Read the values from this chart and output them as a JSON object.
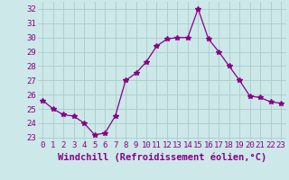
{
  "x": [
    0,
    1,
    2,
    3,
    4,
    5,
    6,
    7,
    8,
    9,
    10,
    11,
    12,
    13,
    14,
    15,
    16,
    17,
    18,
    19,
    20,
    21,
    22,
    23
  ],
  "y": [
    25.6,
    25.0,
    24.6,
    24.5,
    24.0,
    23.2,
    23.3,
    24.5,
    27.0,
    27.5,
    28.3,
    29.4,
    29.9,
    30.0,
    30.0,
    32.0,
    29.9,
    29.0,
    28.0,
    27.0,
    25.9,
    25.8,
    25.5,
    25.4
  ],
  "line_color": "#880088",
  "marker": "*",
  "marker_size": 4,
  "bg_color": "#cce8e8",
  "grid_color": "#aacccc",
  "xlabel": "Windchill (Refroidissement éolien,°C)",
  "xlabel_color": "#880088",
  "xlabel_fontsize": 7.5,
  "tick_color": "#880088",
  "tick_fontsize": 6.5,
  "ylim": [
    22.8,
    32.5
  ],
  "yticks": [
    23,
    24,
    25,
    26,
    27,
    28,
    29,
    30,
    31,
    32
  ],
  "xticks": [
    0,
    1,
    2,
    3,
    4,
    5,
    6,
    7,
    8,
    9,
    10,
    11,
    12,
    13,
    14,
    15,
    16,
    17,
    18,
    19,
    20,
    21,
    22,
    23
  ],
  "xlim": [
    -0.5,
    23.5
  ]
}
